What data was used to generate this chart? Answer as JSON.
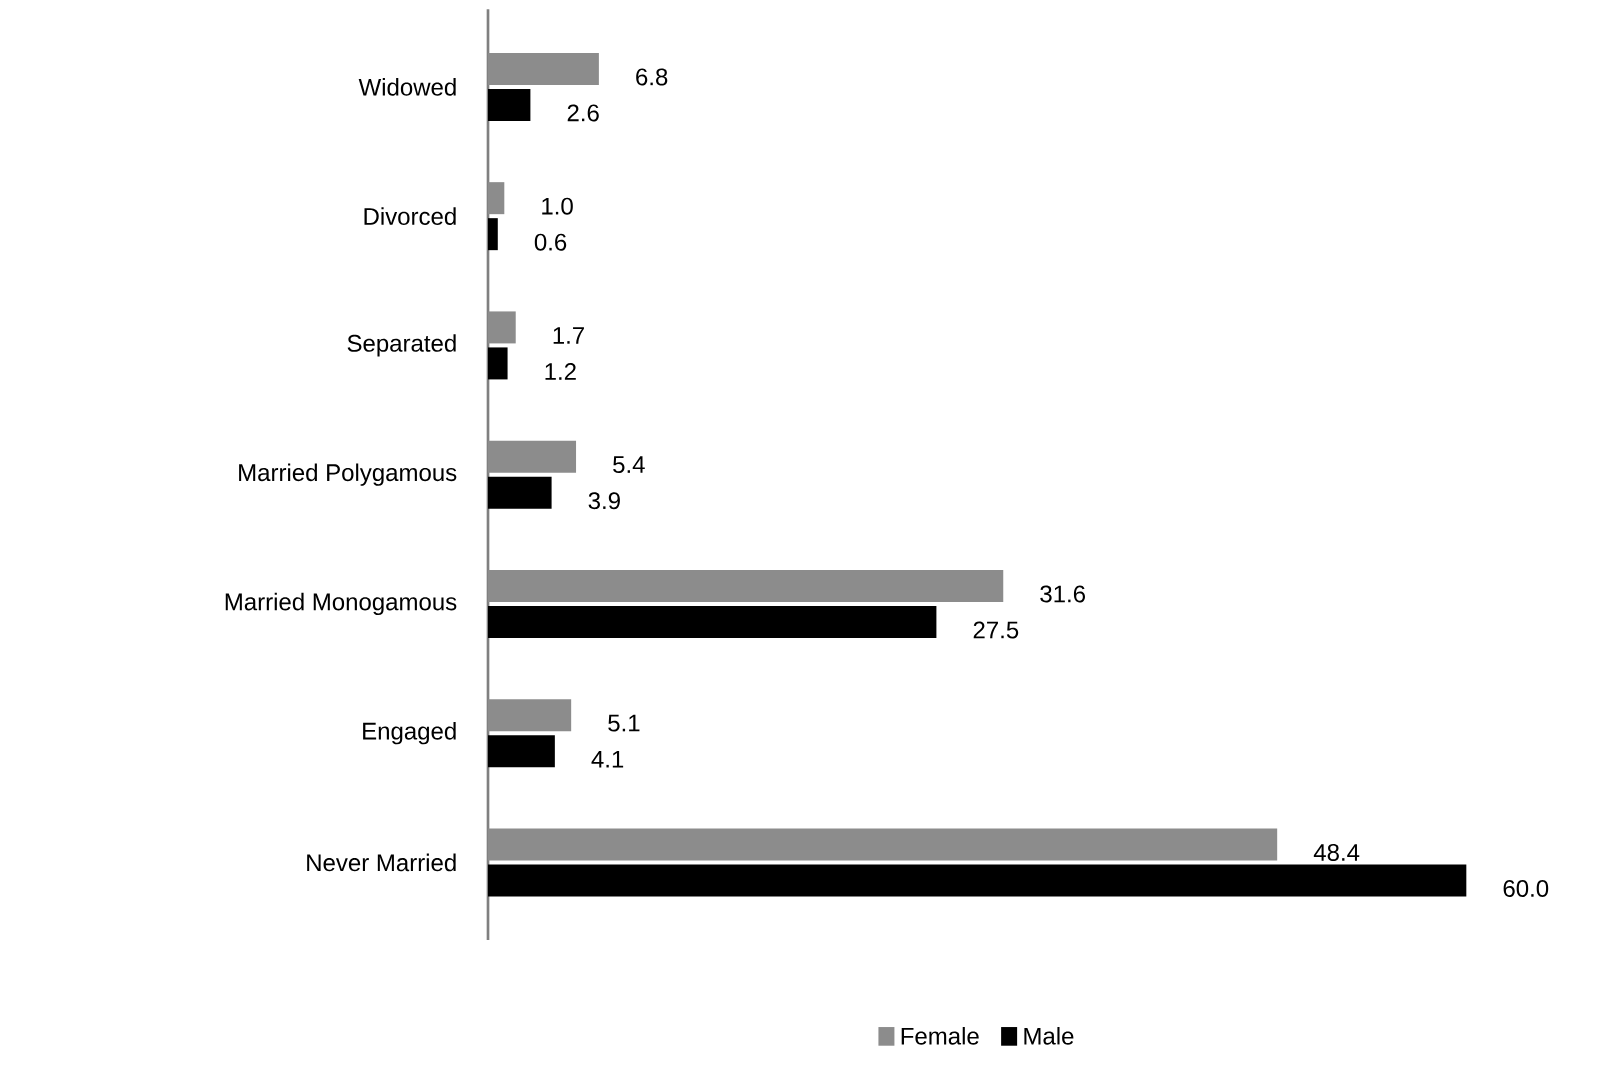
{
  "chart_data": {
    "type": "bar",
    "orientation": "horizontal",
    "categories": [
      "Widowed",
      "Divorced",
      "Separated",
      "Married Polygamous",
      "Married Monogamous",
      "Engaged",
      "Never Married"
    ],
    "series": [
      {
        "name": "Female",
        "color": "#8c8c8c",
        "values": [
          6.8,
          1.0,
          1.7,
          5.4,
          31.6,
          5.1,
          48.4
        ],
        "value_labels": [
          "6.8",
          "1.0",
          "1.7",
          "5.4",
          "31.6",
          "5.1",
          "48.4"
        ]
      },
      {
        "name": "Male",
        "color": "#000000",
        "values": [
          2.6,
          0.6,
          1.2,
          3.9,
          27.5,
          4.1,
          60.0
        ],
        "value_labels": [
          "2.6",
          "0.6",
          "1.2",
          "3.9",
          "27.5",
          "4.1",
          "60.0"
        ]
      }
    ],
    "legend": "bottom"
  }
}
